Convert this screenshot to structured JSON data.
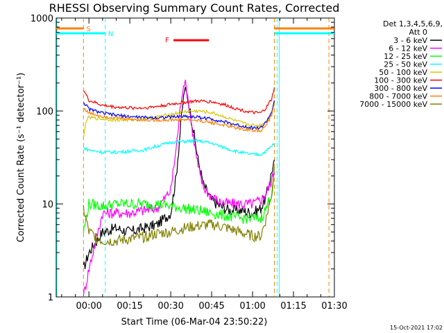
{
  "chart_data": {
    "type": "line",
    "title": "RHESSI Observing Summary Count Rates, Corrected",
    "xlabel": "Start Time (06-Mar-04 23:50:22)",
    "ylabel": "Corrected Count Rate (s⁻¹ detector⁻¹)",
    "yscale": "log",
    "ylim": [
      1,
      1000
    ],
    "xlim_minutes": [
      -12,
      90
    ],
    "x_ticks": [
      {
        "label": "00:00",
        "minutes": 0
      },
      {
        "label": "00:15",
        "minutes": 15
      },
      {
        "label": "00:30",
        "minutes": 30
      },
      {
        "label": "00:45",
        "minutes": 45
      },
      {
        "label": "01:00",
        "minutes": 60
      },
      {
        "label": "01:15",
        "minutes": 75
      },
      {
        "label": "01:30",
        "minutes": 90
      }
    ],
    "y_ticks": [
      {
        "label": "1",
        "value": 1
      },
      {
        "label": "10",
        "value": 10
      },
      {
        "label": "100",
        "value": 100
      },
      {
        "label": "1000",
        "value": 1000
      }
    ],
    "legend": {
      "header_line1": "Det 1,3,4,5,6,9,",
      "header_line2": "Att 0",
      "position": "right"
    },
    "series": [
      {
        "name": "3 - 6 keV",
        "color": "#000000",
        "points": [
          [
            -2,
            2
          ],
          [
            0,
            3
          ],
          [
            5,
            5
          ],
          [
            10,
            5.5
          ],
          [
            15,
            5
          ],
          [
            20,
            5.5
          ],
          [
            25,
            6
          ],
          [
            30,
            8
          ],
          [
            32,
            20
          ],
          [
            34,
            90
          ],
          [
            35,
            170
          ],
          [
            36,
            150
          ],
          [
            38,
            70
          ],
          [
            40,
            30
          ],
          [
            42,
            16
          ],
          [
            45,
            11
          ],
          [
            48,
            9.5
          ],
          [
            52,
            8.5
          ],
          [
            56,
            8.5
          ],
          [
            60,
            8
          ],
          [
            63,
            9
          ],
          [
            65,
            12
          ],
          [
            67,
            22
          ],
          [
            68,
            30
          ]
        ]
      },
      {
        "name": "6 - 12 keV",
        "color": "#ff00ff",
        "points": [
          [
            -2,
            1
          ],
          [
            0,
            2
          ],
          [
            5,
            8
          ],
          [
            10,
            8
          ],
          [
            15,
            8
          ],
          [
            20,
            8.5
          ],
          [
            25,
            9
          ],
          [
            30,
            14
          ],
          [
            32,
            40
          ],
          [
            34,
            150
          ],
          [
            35,
            210
          ],
          [
            36,
            160
          ],
          [
            38,
            60
          ],
          [
            40,
            25
          ],
          [
            42,
            15
          ],
          [
            45,
            12
          ],
          [
            48,
            10.5
          ],
          [
            52,
            10
          ],
          [
            56,
            10
          ],
          [
            60,
            10
          ],
          [
            63,
            11
          ],
          [
            65,
            13
          ],
          [
            67,
            18
          ],
          [
            68,
            22
          ]
        ]
      },
      {
        "name": "12 - 25 keV",
        "color": "#00ff00",
        "points": [
          [
            -2,
            5
          ],
          [
            0,
            10
          ],
          [
            5,
            9.5
          ],
          [
            10,
            10
          ],
          [
            15,
            10
          ],
          [
            20,
            10
          ],
          [
            25,
            10
          ],
          [
            30,
            9.5
          ],
          [
            35,
            9
          ],
          [
            40,
            8.5
          ],
          [
            45,
            8
          ],
          [
            50,
            7.5
          ],
          [
            55,
            7
          ],
          [
            60,
            7
          ],
          [
            63,
            7
          ],
          [
            65,
            9
          ],
          [
            67,
            13
          ],
          [
            68,
            18
          ]
        ]
      },
      {
        "name": "25 - 50 keV",
        "color": "#00ffff",
        "points": [
          [
            -2,
            40
          ],
          [
            0,
            38
          ],
          [
            5,
            36
          ],
          [
            10,
            36
          ],
          [
            15,
            37
          ],
          [
            20,
            38
          ],
          [
            25,
            42
          ],
          [
            30,
            46
          ],
          [
            35,
            47
          ],
          [
            40,
            48
          ],
          [
            45,
            45
          ],
          [
            50,
            40
          ],
          [
            55,
            36
          ],
          [
            60,
            34
          ],
          [
            63,
            34
          ],
          [
            65,
            37
          ],
          [
            67,
            42
          ],
          [
            68,
            45
          ]
        ]
      },
      {
        "name": "50 - 100 keV",
        "color": "#d4c800",
        "points": [
          [
            -2,
            50
          ],
          [
            -1,
            80
          ],
          [
            0,
            85
          ],
          [
            5,
            82
          ],
          [
            10,
            80
          ],
          [
            15,
            80
          ],
          [
            20,
            82
          ],
          [
            25,
            86
          ],
          [
            30,
            92
          ],
          [
            35,
            98
          ],
          [
            40,
            100
          ],
          [
            45,
            96
          ],
          [
            50,
            86
          ],
          [
            55,
            76
          ],
          [
            60,
            70
          ],
          [
            63,
            70
          ],
          [
            65,
            78
          ],
          [
            67,
            95
          ],
          [
            68,
            120
          ]
        ]
      },
      {
        "name": "100 - 300 keV",
        "color": "#ff0000",
        "points": [
          [
            -2,
            170
          ],
          [
            0,
            130
          ],
          [
            5,
            115
          ],
          [
            10,
            110
          ],
          [
            15,
            108
          ],
          [
            20,
            108
          ],
          [
            25,
            112
          ],
          [
            30,
            118
          ],
          [
            35,
            124
          ],
          [
            40,
            128
          ],
          [
            45,
            126
          ],
          [
            50,
            116
          ],
          [
            55,
            104
          ],
          [
            60,
            96
          ],
          [
            63,
            95
          ],
          [
            65,
            108
          ],
          [
            67,
            135
          ],
          [
            68,
            180
          ]
        ]
      },
      {
        "name": "300 - 800 keV",
        "color": "#0000ff",
        "points": [
          [
            -2,
            125
          ],
          [
            0,
            105
          ],
          [
            5,
            95
          ],
          [
            10,
            90
          ],
          [
            15,
            87
          ],
          [
            20,
            85
          ],
          [
            25,
            85
          ],
          [
            30,
            86
          ],
          [
            35,
            88
          ],
          [
            40,
            86
          ],
          [
            45,
            82
          ],
          [
            50,
            76
          ],
          [
            55,
            70
          ],
          [
            60,
            66
          ],
          [
            63,
            66
          ],
          [
            65,
            76
          ],
          [
            67,
            98
          ],
          [
            68,
            130
          ]
        ]
      },
      {
        "name": "800 - 7000 keV",
        "color": "#ff8000",
        "points": [
          [
            -2,
            108
          ],
          [
            0,
            95
          ],
          [
            5,
            88
          ],
          [
            10,
            84
          ],
          [
            15,
            82
          ],
          [
            20,
            80
          ],
          [
            25,
            80
          ],
          [
            30,
            80
          ],
          [
            35,
            81
          ],
          [
            40,
            79
          ],
          [
            45,
            75
          ],
          [
            50,
            70
          ],
          [
            55,
            65
          ],
          [
            60,
            62
          ],
          [
            63,
            62
          ],
          [
            65,
            70
          ],
          [
            67,
            90
          ],
          [
            68,
            118
          ]
        ]
      },
      {
        "name": "7000 - 15000 keV",
        "color": "#808000",
        "points": [
          [
            -2,
            9
          ],
          [
            0,
            5
          ],
          [
            5,
            4
          ],
          [
            10,
            4
          ],
          [
            15,
            4.2
          ],
          [
            20,
            4.4
          ],
          [
            25,
            4.8
          ],
          [
            30,
            5
          ],
          [
            35,
            5.5
          ],
          [
            40,
            5.8
          ],
          [
            45,
            6
          ],
          [
            50,
            5.6
          ],
          [
            55,
            5
          ],
          [
            60,
            4.5
          ],
          [
            63,
            4.5
          ],
          [
            65,
            7
          ],
          [
            67,
            13
          ],
          [
            68,
            25
          ]
        ]
      }
    ],
    "annotations": {
      "saa_label": "S",
      "night_label": "N",
      "flare_label": "F",
      "saa_color": "#ff8000",
      "night_color": "#00ffff",
      "flare_color": "#ff0000",
      "saa_bars": [
        [
          -12,
          -2
        ],
        [
          68,
          90
        ]
      ],
      "night_bars": [
        [
          -12,
          6
        ],
        [
          68,
          90
        ]
      ],
      "flare_bar": [
        31,
        44
      ],
      "saa_lines": [
        -2,
        68,
        88
      ],
      "night_lines": [
        6,
        69
      ],
      "solid_cyan_lines": [
        -12,
        69.5
      ]
    },
    "grid": false,
    "timestamp": "15-Oct-2021 17:02"
  }
}
